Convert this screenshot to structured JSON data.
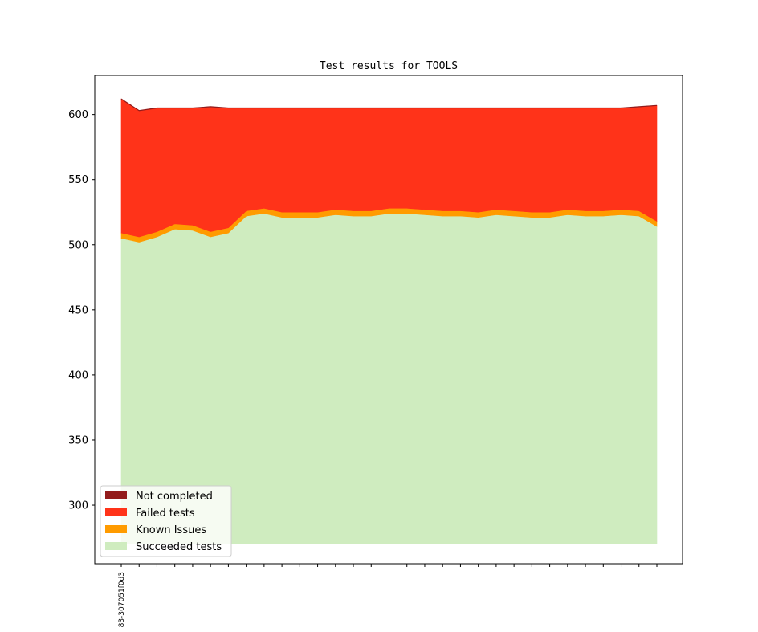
{
  "chart_data": {
    "type": "area",
    "title": "Test results for TOOLS",
    "xlabel": "",
    "ylabel": "",
    "ylim": [
      255,
      630
    ],
    "yticks": [
      300,
      350,
      400,
      450,
      500,
      550,
      600
    ],
    "baseline": 270,
    "x_count": 31,
    "x_tick_labels": [
      {
        "index": 0,
        "label": "83-307051f0d3"
      }
    ],
    "stack_order": [
      "Succeeded tests",
      "Known Issues",
      "Failed tests",
      "Not completed"
    ],
    "series": [
      {
        "name": "Succeeded tests",
        "color": "#cfecbf",
        "values": [
          505,
          502,
          506,
          512,
          511,
          506,
          509,
          522,
          524,
          521,
          521,
          521,
          523,
          522,
          522,
          524,
          524,
          523,
          522,
          522,
          521,
          523,
          522,
          521,
          521,
          523,
          522,
          522,
          523,
          522,
          514
        ]
      },
      {
        "name": "Known Issues",
        "color": "#ff9b00",
        "values": [
          4,
          4,
          4,
          4,
          4,
          4,
          4,
          4,
          4,
          4,
          4,
          4,
          4,
          4,
          4,
          4,
          4,
          4,
          4,
          4,
          4,
          4,
          4,
          4,
          4,
          4,
          4,
          4,
          4,
          4,
          4
        ]
      },
      {
        "name": "Failed tests",
        "color": "#ff3319",
        "values": [
          103,
          97,
          95,
          89,
          90,
          96,
          92,
          79,
          77,
          80,
          80,
          80,
          78,
          79,
          79,
          77,
          77,
          78,
          79,
          79,
          80,
          78,
          79,
          80,
          80,
          78,
          79,
          79,
          78,
          80,
          89
        ]
      },
      {
        "name": "Not completed",
        "color": "#931b1b",
        "values": [
          0,
          0,
          0,
          0,
          0,
          0,
          0,
          0,
          0,
          0,
          0,
          0,
          0,
          0,
          0,
          0,
          0,
          0,
          0,
          0,
          0,
          0,
          0,
          0,
          0,
          0,
          0,
          0,
          0,
          0,
          0
        ]
      }
    ],
    "legend": {
      "placement": "lower-left",
      "entries": [
        {
          "label": "Not completed",
          "color": "#931b1b"
        },
        {
          "label": "Failed tests",
          "color": "#ff3319"
        },
        {
          "label": "Known Issues",
          "color": "#ff9b00"
        },
        {
          "label": "Succeeded tests",
          "color": "#cfecbf"
        }
      ]
    },
    "grid": false
  }
}
